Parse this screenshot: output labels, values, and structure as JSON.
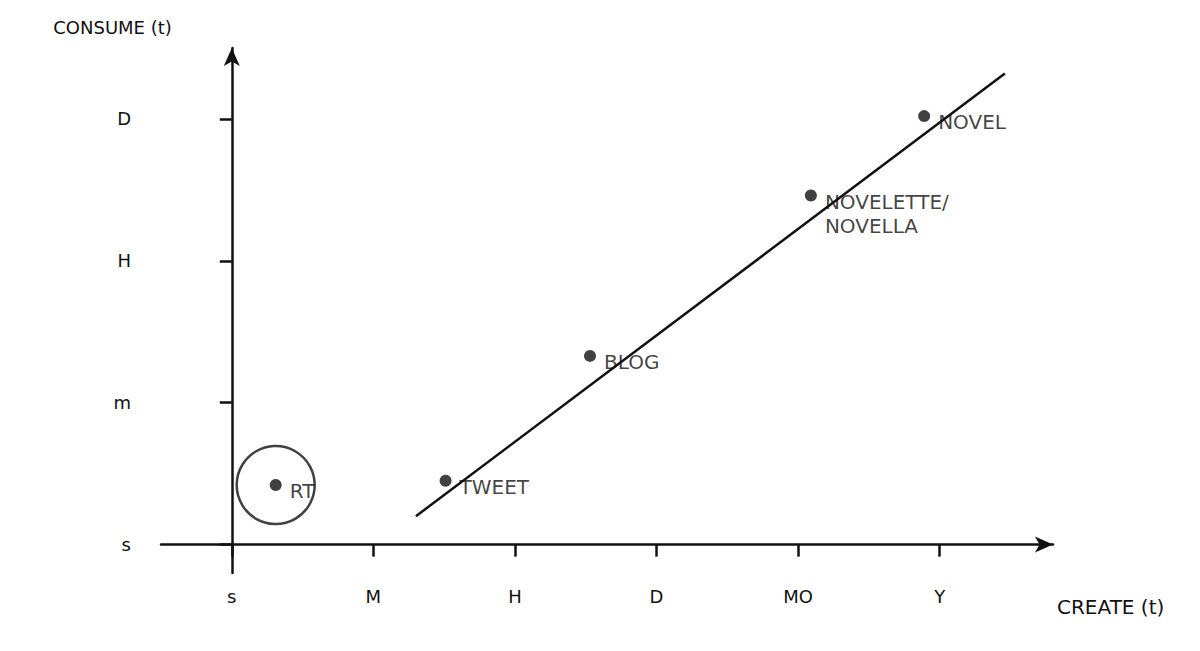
{
  "chart_data": {
    "type": "scatter",
    "x_label": "CREATE (t)",
    "y_label": "CONSUME (t)",
    "xlim": [
      -0.5,
      5.8
    ],
    "ylim": [
      -0.2,
      3.5
    ],
    "xticks": [
      {
        "value": 0,
        "label": "s"
      },
      {
        "value": 1,
        "label": "M"
      },
      {
        "value": 2,
        "label": "H"
      },
      {
        "value": 3,
        "label": "D"
      },
      {
        "value": 4,
        "label": "MO"
      },
      {
        "value": 5,
        "label": "Y"
      }
    ],
    "yticks": [
      {
        "value": 0,
        "label": "s"
      },
      {
        "value": 1,
        "label": "m"
      },
      {
        "value": 2,
        "label": "H"
      },
      {
        "value": 3,
        "label": "D"
      }
    ],
    "grid": false,
    "color": "#111111",
    "series": [
      {
        "type": "scatter",
        "marker": "circled",
        "x": [
          0.31
        ],
        "values": [
          0.42
        ],
        "point_labels": [
          "RT"
        ]
      },
      {
        "type": "scatter",
        "marker": "circle",
        "x": [
          1.51,
          2.53,
          4.09,
          4.89
        ],
        "values": [
          0.45,
          1.33,
          2.46,
          3.02
        ],
        "point_labels": [
          "TWEET",
          "BLOG",
          "NOVELETTE/\nNOVELLA",
          "NOVEL"
        ]
      },
      {
        "type": "line",
        "x": [
          1.3,
          5.46
        ],
        "values": [
          0.2,
          3.32
        ]
      }
    ]
  }
}
